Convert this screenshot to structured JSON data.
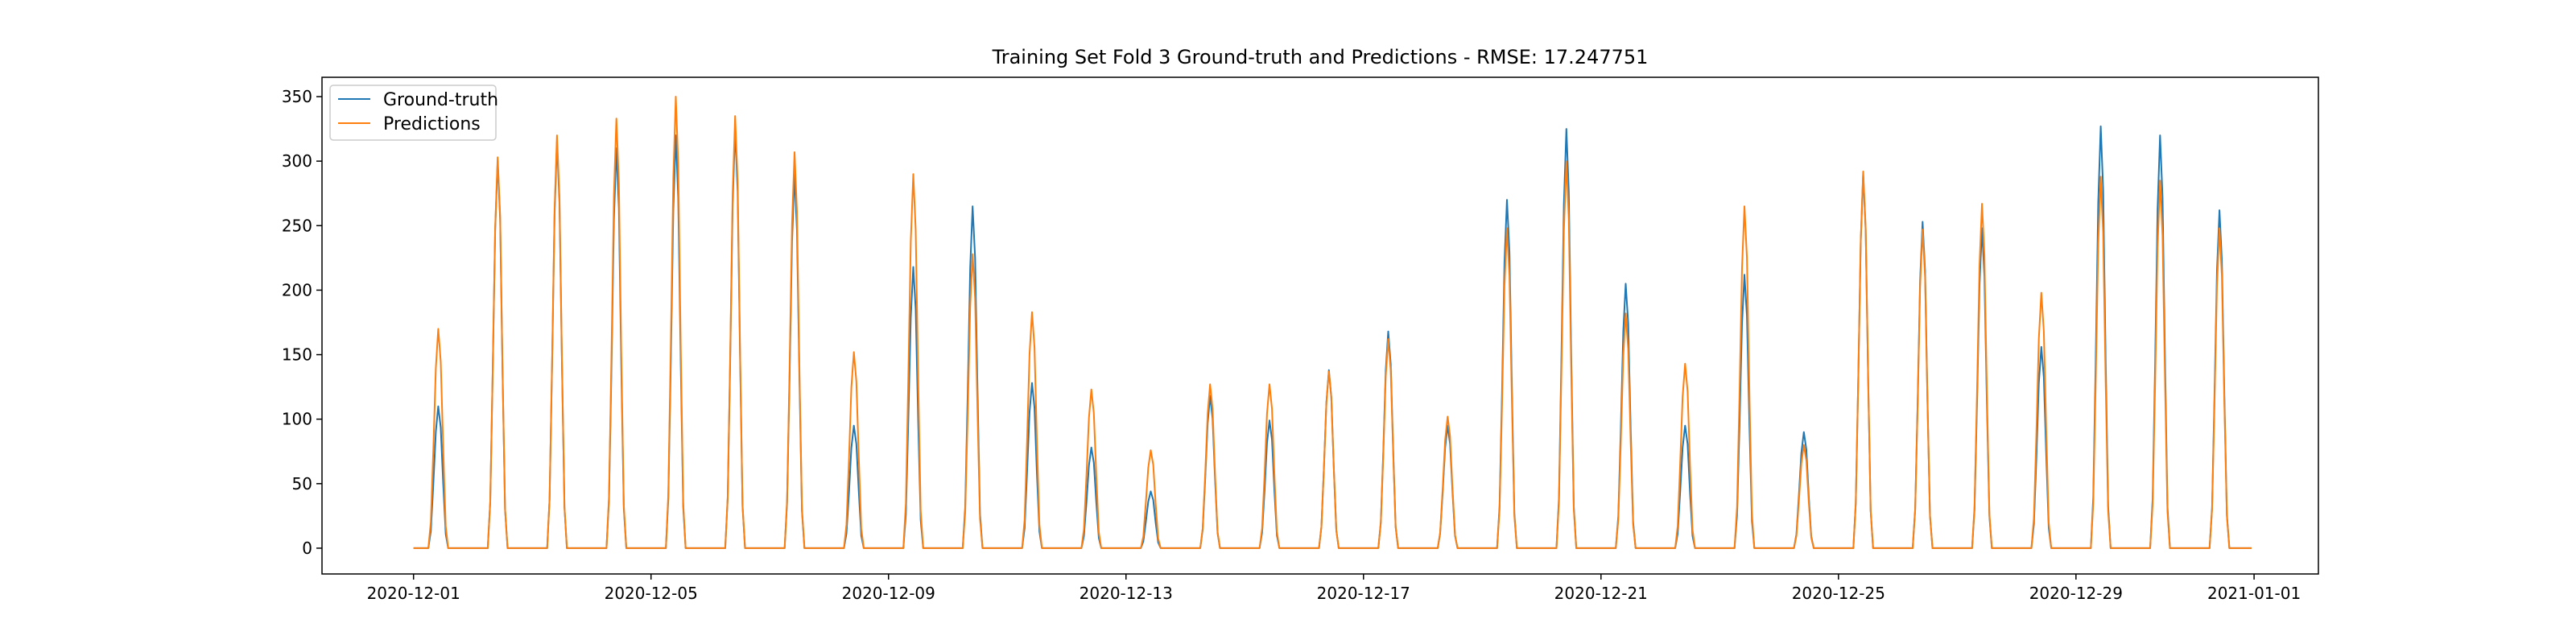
{
  "chart_data": {
    "type": "line",
    "title": "Training Set Fold 3 Ground-truth and Predictions - RMSE: 17.247751",
    "xlabel": "",
    "ylabel": "",
    "x_start": "2020-12-01",
    "x_end": "2021-01-01",
    "xlim": [
      "2020-11-29T11:00",
      "2021-01-02T02:00"
    ],
    "ylim": [
      -20,
      365
    ],
    "xticks": [
      "2020-12-01",
      "2020-12-05",
      "2020-12-09",
      "2020-12-13",
      "2020-12-17",
      "2020-12-21",
      "2020-12-25",
      "2020-12-29",
      "2021-01-01"
    ],
    "yticks": [
      0,
      50,
      100,
      150,
      200,
      250,
      300,
      350
    ],
    "grid": false,
    "legend_position": "top-left",
    "colors": {
      "ground_truth": "#1f77b4",
      "predictions": "#ff7f0e"
    },
    "days": [
      "2020-12-01",
      "2020-12-02",
      "2020-12-03",
      "2020-12-04",
      "2020-12-05",
      "2020-12-06",
      "2020-12-07",
      "2020-12-08",
      "2020-12-09",
      "2020-12-10",
      "2020-12-11",
      "2020-12-12",
      "2020-12-13",
      "2020-12-14",
      "2020-12-15",
      "2020-12-16",
      "2020-12-17",
      "2020-12-18",
      "2020-12-19",
      "2020-12-20",
      "2020-12-21",
      "2020-12-22",
      "2020-12-23",
      "2020-12-24",
      "2020-12-25",
      "2020-12-26",
      "2020-12-27",
      "2020-12-28",
      "2020-12-29",
      "2020-12-30",
      "2020-12-31"
    ],
    "series": [
      {
        "name": "Ground-truth",
        "daily_peak": [
          110,
          300,
          315,
          310,
          320,
          325,
          290,
          95,
          218,
          265,
          128,
          78,
          44,
          118,
          99,
          138,
          168,
          95,
          270,
          325,
          205,
          95,
          212,
          90,
          290,
          253,
          248,
          156,
          327,
          320,
          262
        ]
      },
      {
        "name": "Predictions",
        "daily_peak": [
          170,
          303,
          320,
          333,
          350,
          335,
          307,
          152,
          290,
          228,
          183,
          123,
          76,
          127,
          127,
          137,
          162,
          102,
          248,
          300,
          182,
          143,
          265,
          80,
          292,
          247,
          267,
          198,
          288,
          285,
          248
        ]
      }
    ]
  }
}
